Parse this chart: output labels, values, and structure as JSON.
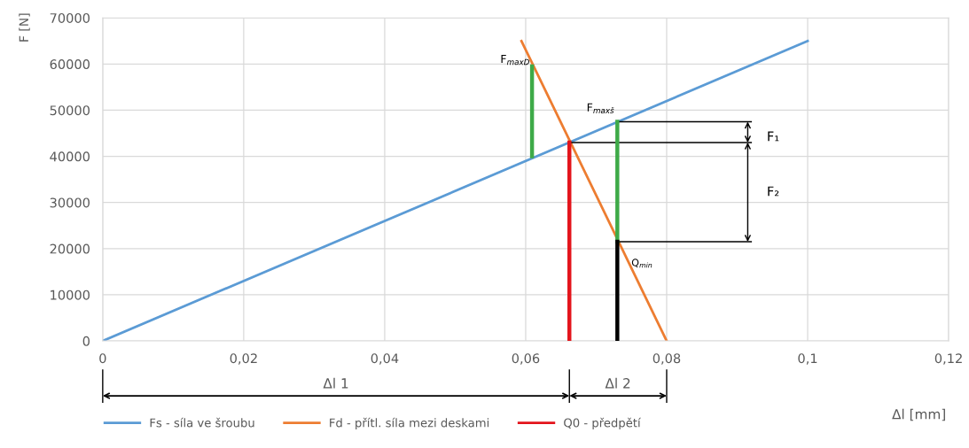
{
  "chart_data": {
    "type": "line",
    "xlabel": "Δl [mm]",
    "ylabel": "F [N]",
    "xlim": [
      0,
      0.12
    ],
    "ylim": [
      0,
      70000
    ],
    "xticks": [
      0,
      {
        "value": 0.02,
        "label": "0,02"
      },
      {
        "value": 0.04,
        "label": "0,04"
      },
      {
        "value": 0.06,
        "label": "0,06"
      },
      {
        "value": 0.08,
        "label": "0,08"
      },
      {
        "value": 0.1,
        "label": "0,1"
      },
      {
        "value": 0.12,
        "label": "0,12"
      }
    ],
    "yticks": [
      0,
      10000,
      20000,
      30000,
      40000,
      50000,
      60000,
      70000
    ],
    "grid": true,
    "legend": "bottom",
    "marker": "none",
    "line_style": "solid",
    "series": [
      {
        "name": "Fs - síla ve šroubu",
        "color": "#5b9bd5",
        "x": [
          0,
          0.1
        ],
        "values": [
          0,
          65000
        ]
      },
      {
        "name": "Fd - přítl. síla mezi deskami",
        "color": "#ed7d31",
        "x": [
          0.0594,
          0.08
        ],
        "values": [
          65000,
          0
        ]
      },
      {
        "name": "Q0 - předpětí",
        "color": "#e3141b",
        "x": [
          0.0662,
          0.0662
        ],
        "values": [
          0,
          43000
        ]
      },
      {
        "color": "#3eaa48",
        "x": [
          0.0609,
          0.0609
        ],
        "values": [
          40000,
          59500
        ]
      },
      {
        "color": "#3eaa48",
        "x": [
          0.073,
          0.073
        ],
        "values": [
          21500,
          47500
        ]
      },
      {
        "color": "#000000",
        "x": [
          0.073,
          0.073
        ],
        "values": [
          0,
          21500
        ]
      },
      {
        "color": "#000000",
        "x": [
          0.073,
          0.092
        ],
        "values": [
          47500,
          47500
        ]
      },
      {
        "color": "#000000",
        "x": [
          0.0662,
          0.092
        ],
        "values": [
          43000,
          43000
        ]
      },
      {
        "color": "#000000",
        "x": [
          0.073,
          0.092
        ],
        "values": [
          21500,
          21500
        ]
      }
    ],
    "annotations": [
      "F$_{maxD}$",
      "F$_{maxš}$",
      "F₁",
      "F₂",
      "Q$_{min}$",
      "Δl 1",
      "Δl 2"
    ]
  }
}
